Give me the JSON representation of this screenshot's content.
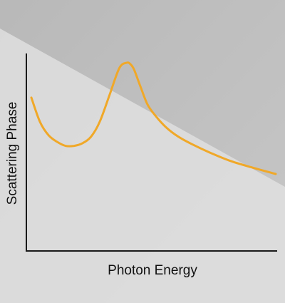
{
  "chart_data": {
    "type": "line",
    "title": "",
    "xlabel": "Photon Energy",
    "ylabel": "Scattering Phase",
    "xticks": [],
    "yticks": [],
    "xlim": [
      0,
      10
    ],
    "ylim": [
      0,
      10
    ],
    "grid": false,
    "legend": "none",
    "series": [
      {
        "color": "#f0a828",
        "x": [
          0.0,
          0.35,
          0.7,
          1.05,
          1.4,
          1.75,
          2.1,
          2.45,
          2.8,
          3.2,
          3.6,
          3.9,
          4.05,
          4.2,
          4.45,
          4.75,
          5.1,
          5.5,
          6.0,
          6.6,
          7.3,
          8.1,
          9.0,
          10.0
        ],
        "y": [
          7.4,
          5.6,
          4.6,
          4.1,
          3.8,
          3.8,
          4.0,
          4.5,
          5.6,
          7.6,
          9.6,
          10.0,
          9.9,
          9.5,
          8.3,
          6.9,
          6.0,
          5.2,
          4.5,
          3.9,
          3.3,
          2.7,
          2.2,
          1.7
        ]
      }
    ]
  }
}
